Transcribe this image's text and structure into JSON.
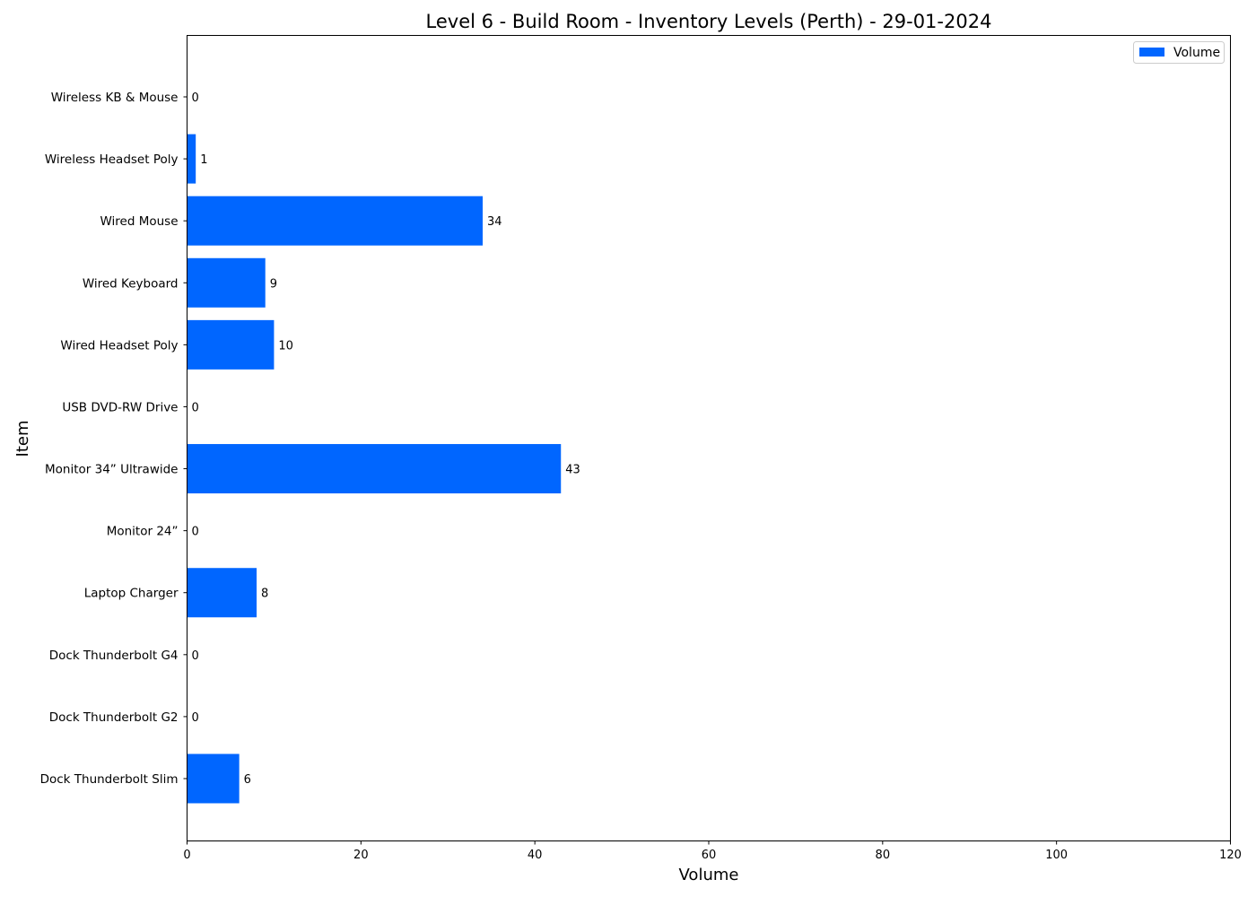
{
  "chart_data": {
    "type": "bar",
    "orientation": "horizontal",
    "title": "Level 6 - Build Room - Inventory Levels (Perth) - 29-01-2024",
    "xlabel": "Volume",
    "ylabel": "Item",
    "xlim": [
      0,
      120
    ],
    "xticks": [
      0,
      20,
      40,
      60,
      80,
      100,
      120
    ],
    "categories": [
      "Dock Thunderbolt Slim",
      "Dock Thunderbolt G2",
      "Dock Thunderbolt G4",
      "Laptop Charger ",
      "Monitor 24” ",
      "Monitor 34” Ultrawide",
      "USB DVD-RW Drive",
      "Wired Headset Poly",
      "Wired Keyboard",
      "Wired Mouse",
      "Wireless Headset Poly ",
      "Wireless KB & Mouse"
    ],
    "series": [
      {
        "name": "Volume",
        "values": [
          6,
          0,
          0,
          8,
          0,
          43,
          0,
          10,
          9,
          34,
          1,
          0
        ]
      }
    ],
    "data_labels": true,
    "grid": false,
    "legend": "top-right",
    "colors": {
      "bar": "#0066FF",
      "axes": "#000000",
      "background": "#FFFFFF"
    }
  }
}
